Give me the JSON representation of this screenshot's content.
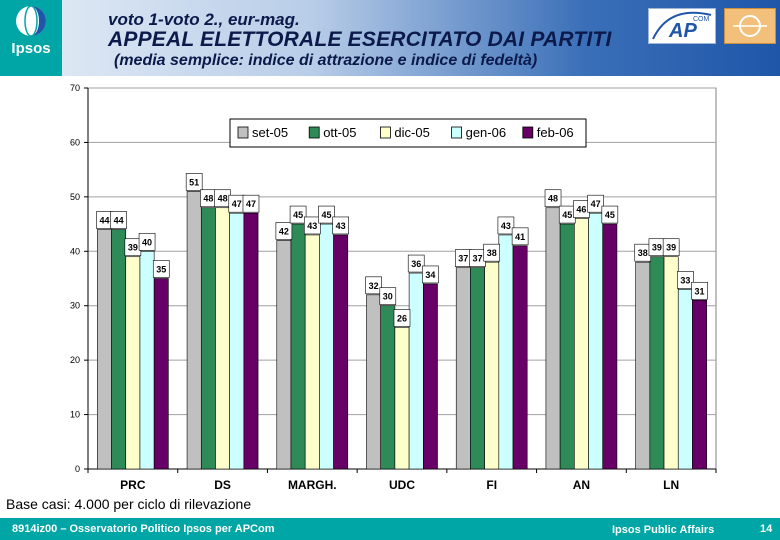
{
  "header": {
    "line1": "voto 1-voto 2., eur-mag.",
    "line2": "APPEAL ELETTORALE ESERCITATO DAI PARTITI",
    "line3": "(media semplice: indice di attrazione e indice di fedeltà)",
    "logo_text": "Ipsos",
    "partner_logo_text": "AP",
    "partner_logo_sup": "COM"
  },
  "colors": {
    "teal": "#00a5a5",
    "set-05": "#c0c0c0",
    "ott-05": "#2e8b57",
    "dic-05": "#ffffcc",
    "gen-06": "#ccffff",
    "feb-06": "#660066"
  },
  "chart_data": {
    "type": "bar",
    "categories": [
      "PRC",
      "DS",
      "MARGH.",
      "UDC",
      "FI",
      "AN",
      "LN"
    ],
    "series": [
      {
        "name": "set-05",
        "values": [
          44,
          51,
          42,
          32,
          37,
          48,
          38
        ]
      },
      {
        "name": "ott-05",
        "values": [
          44,
          48,
          45,
          30,
          37,
          45,
          39
        ]
      },
      {
        "name": "dic-05",
        "values": [
          39,
          48,
          43,
          26,
          38,
          46,
          39
        ]
      },
      {
        "name": "gen-06",
        "values": [
          40,
          47,
          45,
          36,
          43,
          47,
          33
        ]
      },
      {
        "name": "feb-06",
        "values": [
          35,
          47,
          43,
          34,
          41,
          45,
          31
        ]
      }
    ],
    "ylim": [
      0,
      70
    ],
    "yticks": [
      0,
      10,
      20,
      30,
      40,
      50,
      60,
      70
    ],
    "legend_position": "top-center",
    "grid": true
  },
  "footer": {
    "note": "Base casi: 4.000 per ciclo di rilevazione",
    "left": "8914iz00 – Osservatorio Politico Ipsos per APCom",
    "middle": "Ipsos Public Affairs",
    "page": "14"
  }
}
